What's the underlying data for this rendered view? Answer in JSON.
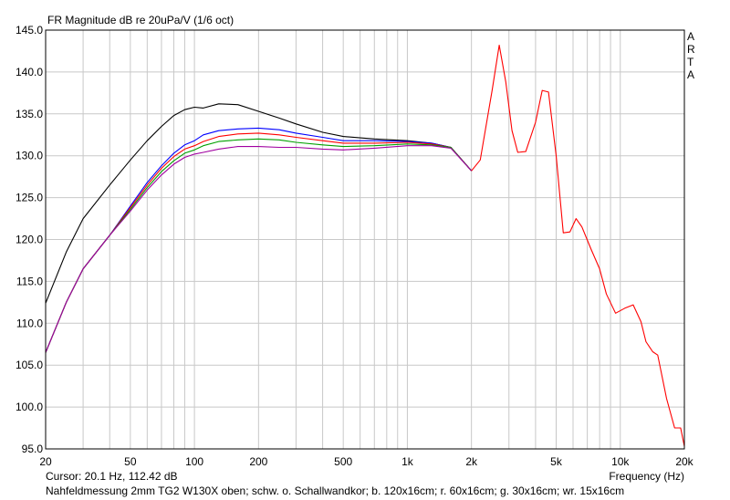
{
  "chart_data": {
    "type": "line",
    "title": "FR Magnitude dB re 20uPa/V (1/6 oct)",
    "xlabel": "Frequency (Hz)",
    "ylabel": "",
    "xscale": "log",
    "xlim": [
      20,
      20000
    ],
    "ylim": [
      95,
      145
    ],
    "grid": true,
    "x_ticks": [
      {
        "value": 20,
        "label": "20"
      },
      {
        "value": 50,
        "label": "50"
      },
      {
        "value": 100,
        "label": "100"
      },
      {
        "value": 200,
        "label": "200"
      },
      {
        "value": 500,
        "label": "500"
      },
      {
        "value": 1000,
        "label": "1k"
      },
      {
        "value": 2000,
        "label": "2k"
      },
      {
        "value": 5000,
        "label": "5k"
      },
      {
        "value": 10000,
        "label": "10k"
      },
      {
        "value": 20000,
        "label": "20k"
      }
    ],
    "y_ticks": [
      "145.0",
      "140.0",
      "135.0",
      "130.0",
      "125.0",
      "120.0",
      "115.0",
      "110.0",
      "105.0",
      "100.0",
      "95.0"
    ],
    "series": [
      {
        "color": "#000000",
        "x": [
          20,
          25,
          30,
          40,
          50,
          60,
          70,
          80,
          90,
          100,
          110,
          130,
          160,
          200,
          250,
          300,
          400,
          500,
          700,
          1000,
          1300,
          1600,
          2000
        ],
        "y": [
          112.4,
          118.5,
          122.5,
          126.5,
          129.5,
          131.8,
          133.5,
          134.8,
          135.5,
          135.8,
          135.7,
          136.2,
          136.1,
          135.3,
          134.5,
          133.8,
          132.8,
          132.3,
          132.0,
          131.8,
          131.5,
          131.0,
          128.2
        ]
      },
      {
        "color": "#0000ff",
        "x": [
          20,
          25,
          30,
          40,
          50,
          60,
          70,
          80,
          90,
          100,
          110,
          130,
          160,
          200,
          250,
          300,
          400,
          500,
          700,
          1000,
          1300,
          1600,
          2000
        ],
        "y": [
          106.5,
          112.5,
          116.5,
          120.5,
          124.0,
          126.8,
          128.8,
          130.3,
          131.3,
          131.8,
          132.5,
          133.0,
          133.2,
          133.3,
          133.1,
          132.7,
          132.2,
          131.8,
          131.8,
          131.7,
          131.5,
          131.0,
          128.2
        ]
      },
      {
        "color": "#ff0000",
        "x": [
          20,
          25,
          30,
          40,
          50,
          60,
          70,
          80,
          90,
          100,
          110,
          130,
          160,
          200,
          250,
          300,
          400,
          500,
          700,
          1000,
          1300,
          1600,
          2000
        ],
        "y": [
          106.5,
          112.5,
          116.5,
          120.5,
          123.8,
          126.5,
          128.5,
          129.9,
          130.8,
          131.2,
          131.7,
          132.3,
          132.6,
          132.7,
          132.5,
          132.2,
          131.8,
          131.5,
          131.5,
          131.6,
          131.4,
          131.0,
          128.2
        ]
      },
      {
        "color": "#00a000",
        "x": [
          20,
          25,
          30,
          40,
          50,
          60,
          70,
          80,
          90,
          100,
          110,
          130,
          160,
          200,
          250,
          300,
          400,
          500,
          700,
          1000,
          1300,
          1600,
          2000
        ],
        "y": [
          106.5,
          112.5,
          116.5,
          120.5,
          123.6,
          126.2,
          128.1,
          129.4,
          130.3,
          130.7,
          131.2,
          131.7,
          131.9,
          132.0,
          131.9,
          131.6,
          131.3,
          131.1,
          131.2,
          131.4,
          131.3,
          131.0,
          128.2
        ]
      },
      {
        "color": "#a000a0",
        "x": [
          20,
          25,
          30,
          40,
          50,
          60,
          70,
          80,
          90,
          100,
          110,
          130,
          160,
          200,
          250,
          300,
          400,
          500,
          700,
          1000,
          1300,
          1600,
          2000
        ],
        "y": [
          106.5,
          112.5,
          116.5,
          120.5,
          123.4,
          125.9,
          127.7,
          129.0,
          129.8,
          130.2,
          130.4,
          130.8,
          131.1,
          131.1,
          131.0,
          131.0,
          130.8,
          130.7,
          130.9,
          131.2,
          131.2,
          130.9,
          128.2
        ]
      },
      {
        "color": "#ff0000",
        "x": [
          2000,
          2200,
          2500,
          2700,
          2900,
          3100,
          3300,
          3600,
          4000,
          4300,
          4600,
          5000,
          5400,
          5800,
          6200,
          6600,
          7300,
          8000,
          8600,
          9500,
          10500,
          11500,
          12500,
          13200,
          14200,
          15000,
          16500,
          18000,
          19200,
          20000
        ],
        "y": [
          128.2,
          129.5,
          137.8,
          143.2,
          138.8,
          133.0,
          130.4,
          130.5,
          134.0,
          137.8,
          137.6,
          130.0,
          120.8,
          120.9,
          122.5,
          121.5,
          118.8,
          116.5,
          113.5,
          111.2,
          111.8,
          112.2,
          110.2,
          107.8,
          106.6,
          106.2,
          101.0,
          97.5,
          97.5,
          95.3
        ]
      }
    ]
  },
  "top_right_brand": [
    "A",
    "R",
    "T",
    "A"
  ],
  "status": {
    "cursor": "Cursor: 20.1 Hz, 112.42 dB",
    "description": "Nahfeldmessung 2mm TG2 W130X oben; schw. o. Schallwandkor; b. 120x16cm; r. 60x16cm; g. 30x16cm; wr. 15x16cm"
  }
}
